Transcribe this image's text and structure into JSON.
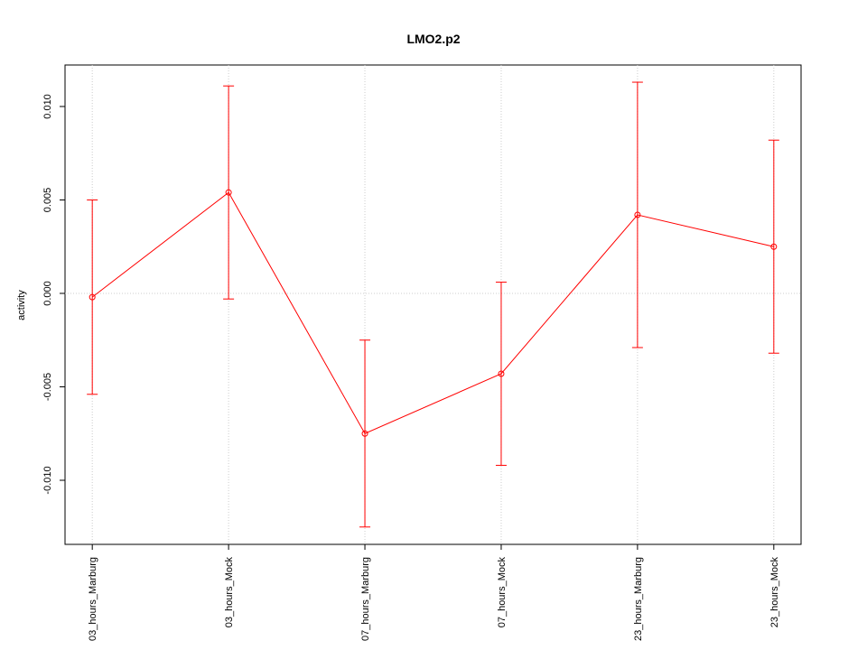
{
  "chart_data": {
    "type": "line",
    "title": "LMO2.p2",
    "y_label": "activity",
    "categories": [
      "03_hours_Marburg",
      "03_hours_Mock",
      "07_hours_Marburg",
      "07_hours_Mock",
      "23_hours_Marburg",
      "23_hours_Mock"
    ],
    "values": [
      -0.0002,
      0.0054,
      -0.0075,
      -0.0043,
      0.0042,
      0.0025
    ],
    "errors": [
      0.0052,
      0.0057,
      0.005,
      0.0049,
      0.0071,
      0.0057
    ],
    "color": "#ff0000",
    "ylim": [
      -0.01343,
      0.01222
    ],
    "yticks": [
      {
        "value": -0.01,
        "label": "-0.010"
      },
      {
        "value": -0.005,
        "label": "-0.005"
      },
      {
        "value": 0,
        "label": "0.000"
      },
      {
        "value": 0.005,
        "label": "0.005"
      },
      {
        "value": 0.01,
        "label": "0.010"
      }
    ],
    "grid": true,
    "hline": 0
  }
}
